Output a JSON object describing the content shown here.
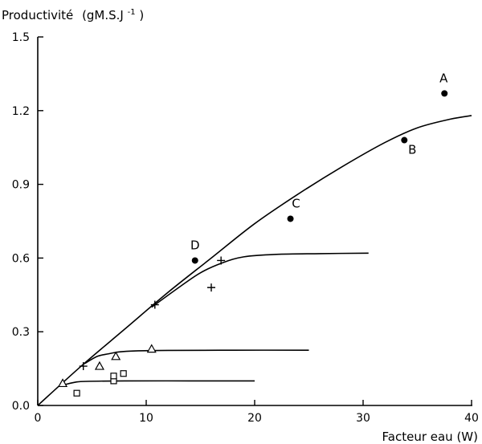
{
  "chart_data": {
    "type": "scatter",
    "ylabel_main": "Productivité",
    "ylabel_unit": "(gM.S.J",
    "ylabel_exp": "-1",
    "ylabel_close": ")",
    "xlabel": "Facteur eau (W)",
    "xlim": [
      0,
      40
    ],
    "ylim": [
      0,
      1.5
    ],
    "x_ticks": [
      0,
      10,
      20,
      30,
      40
    ],
    "y_ticks": [
      0.0,
      0.3,
      0.6,
      0.9,
      1.2,
      1.5
    ],
    "y_tick_labels": [
      "0.0",
      "0.3",
      "0.6",
      "0.9",
      "1.2",
      "1.5"
    ],
    "series": [
      {
        "marker": "circle",
        "points": [
          {
            "x": 37.5,
            "y": 1.27,
            "label": "A"
          },
          {
            "x": 33.8,
            "y": 1.08,
            "label": "B"
          },
          {
            "x": 23.3,
            "y": 0.76,
            "label": "C"
          },
          {
            "x": 14.5,
            "y": 0.59,
            "label": "D"
          }
        ]
      },
      {
        "marker": "plus",
        "points": [
          {
            "x": 4.2,
            "y": 0.16
          },
          {
            "x": 10.8,
            "y": 0.41
          },
          {
            "x": 16.0,
            "y": 0.48
          },
          {
            "x": 16.9,
            "y": 0.59
          }
        ]
      },
      {
        "marker": "triangle",
        "points": [
          {
            "x": 2.3,
            "y": 0.09
          },
          {
            "x": 5.7,
            "y": 0.16
          },
          {
            "x": 7.2,
            "y": 0.2
          },
          {
            "x": 10.5,
            "y": 0.23
          }
        ]
      },
      {
        "marker": "square",
        "points": [
          {
            "x": 3.6,
            "y": 0.05
          },
          {
            "x": 7.0,
            "y": 0.1
          },
          {
            "x": 7.0,
            "y": 0.12
          },
          {
            "x": 7.9,
            "y": 0.13
          }
        ]
      }
    ],
    "curves": [
      {
        "points": [
          [
            0,
            0
          ],
          [
            4,
            0.16
          ],
          [
            8,
            0.31
          ],
          [
            12,
            0.46
          ],
          [
            16,
            0.6
          ],
          [
            20,
            0.74
          ],
          [
            24,
            0.86
          ],
          [
            28,
            0.97
          ],
          [
            32,
            1.07
          ],
          [
            35,
            1.13
          ],
          [
            38,
            1.165
          ],
          [
            40,
            1.18
          ]
        ]
      },
      {
        "points": [
          [
            10.5,
            0.4
          ],
          [
            13,
            0.48
          ],
          [
            15,
            0.54
          ],
          [
            17,
            0.58
          ],
          [
            19,
            0.605
          ],
          [
            22,
            0.615
          ],
          [
            26,
            0.618
          ],
          [
            30.5,
            0.62
          ]
        ]
      },
      {
        "points": [
          [
            4.3,
            0.17
          ],
          [
            5.5,
            0.2
          ],
          [
            6.5,
            0.21
          ],
          [
            7.5,
            0.218
          ],
          [
            9,
            0.222
          ],
          [
            12,
            0.224
          ],
          [
            18,
            0.225
          ],
          [
            25,
            0.225
          ]
        ]
      },
      {
        "points": [
          [
            2.5,
            0.085
          ],
          [
            3.5,
            0.095
          ],
          [
            4.5,
            0.098
          ],
          [
            8,
            0.1
          ],
          [
            14,
            0.1
          ],
          [
            20,
            0.1
          ]
        ]
      }
    ]
  }
}
